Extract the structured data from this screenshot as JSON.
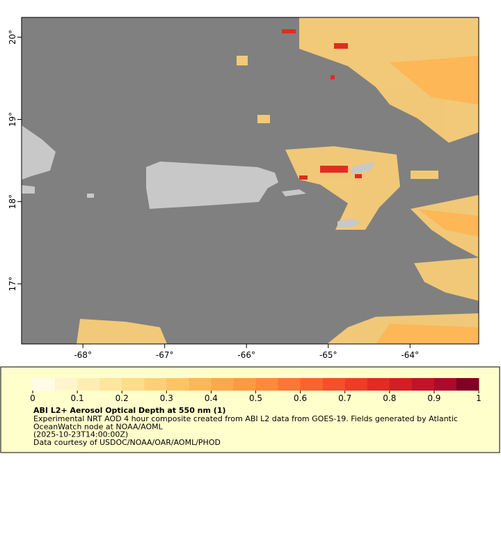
{
  "map": {
    "xlim": [
      -68.75,
      -63.16
    ],
    "ylim": [
      16.27,
      20.24
    ],
    "xticks": [
      {
        "value": -68,
        "label": "-68°"
      },
      {
        "value": -67,
        "label": "-67°"
      },
      {
        "value": -66,
        "label": "-66°"
      },
      {
        "value": -65,
        "label": "-65°"
      },
      {
        "value": -64,
        "label": "-64°"
      }
    ],
    "yticks": [
      {
        "value": 17,
        "label": "17°"
      },
      {
        "value": 18,
        "label": "18°"
      },
      {
        "value": 19,
        "label": "19°"
      },
      {
        "value": 20,
        "label": "20°"
      }
    ]
  },
  "colorbar": {
    "title": "ABI L2+ Aerosol Optical Depth at 550 nm (1)",
    "range": [
      0,
      1
    ],
    "ticks": [
      0,
      0.1,
      0.2,
      0.3,
      0.4,
      0.5,
      0.6,
      0.7,
      0.8,
      0.9,
      1
    ],
    "colors": [
      "#fffde8",
      "#fff5cc",
      "#ffedb3",
      "#ffe59e",
      "#fddc8a",
      "#fdd078",
      "#fdc466",
      "#fdb757",
      "#fca94b",
      "#fc9a42",
      "#fc8a3a",
      "#fb7733",
      "#f8642e",
      "#f4512a",
      "#ec3e26",
      "#e02c22",
      "#d21f25",
      "#c0142a",
      "#aa0a2c",
      "#800026"
    ]
  },
  "caption": [
    "Experimental NRT AOD 4 hour composite created from ABI L2 data from GOES-19. Fields generated by Atlantic",
    "OceanWatch node at NOAA/AOML",
    "(2025-10-23T14:00:00Z)",
    "Data courtesy of USDOC/NOAA/OAR/AOML/PHOD"
  ]
}
